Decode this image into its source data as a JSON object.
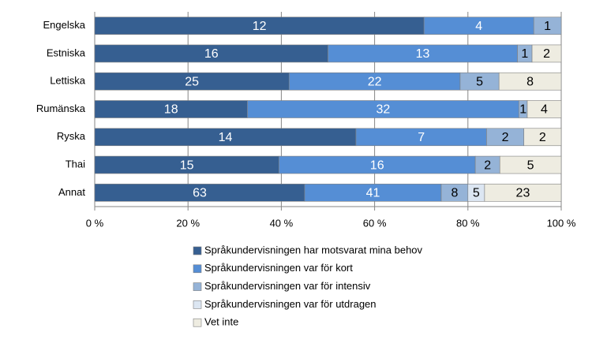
{
  "chart_data": {
    "type": "stacked_percent_bar",
    "categories": [
      "Engelska",
      "Estniska",
      "Lettiska",
      "Rumänska",
      "Ryska",
      "Thai",
      "Annat"
    ],
    "series": [
      {
        "name": "Språkundervisningen har motsvarat mina behov",
        "color": "#365f91",
        "values": [
          12,
          16,
          25,
          18,
          14,
          15,
          63
        ]
      },
      {
        "name": "Språkundervisningen var för kort",
        "color": "#558ed5",
        "values": [
          4,
          13,
          22,
          32,
          7,
          16,
          41
        ]
      },
      {
        "name": "Språkundervisningen var för intensiv",
        "color": "#95b3d7",
        "values": [
          1,
          1,
          5,
          1,
          2,
          2,
          8
        ]
      },
      {
        "name": "Språkundervisningen var för utdragen",
        "color": "#dce6f2",
        "values": [
          0,
          0,
          0,
          0,
          0,
          0,
          5
        ]
      },
      {
        "name": "Vet inte",
        "color": "#eeece1",
        "values": [
          0,
          2,
          8,
          4,
          2,
          5,
          23
        ]
      }
    ],
    "xlim": [
      0,
      100
    ],
    "xticks": [
      {
        "value": 0,
        "label": "0 %"
      },
      {
        "value": 20,
        "label": "20 %"
      },
      {
        "value": 40,
        "label": "40 %"
      },
      {
        "value": 60,
        "label": "60 %"
      },
      {
        "value": 80,
        "label": "80 %"
      },
      {
        "value": 100,
        "label": "100 %"
      }
    ],
    "grid": true
  }
}
